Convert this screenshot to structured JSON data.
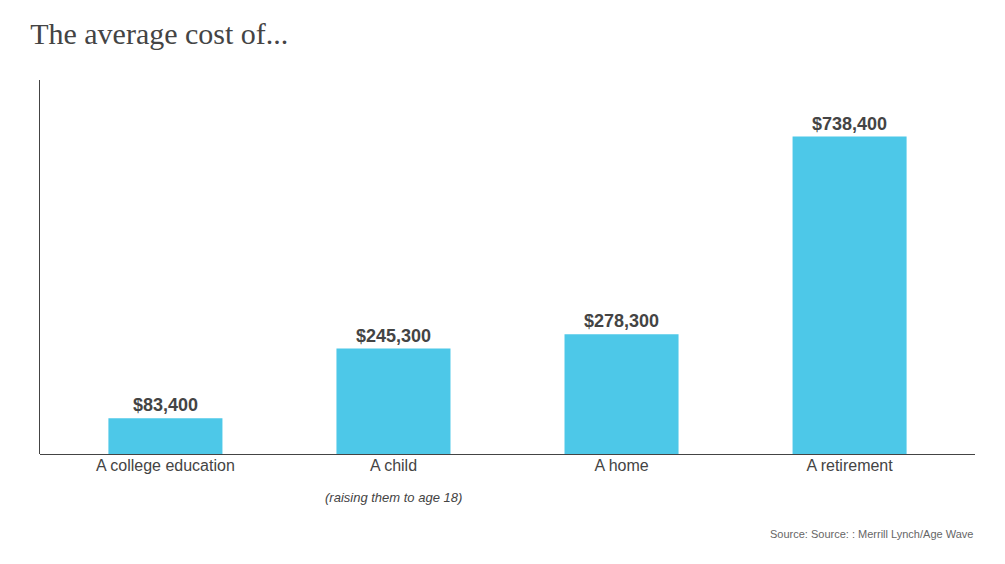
{
  "chart_data": {
    "type": "bar",
    "title": "The average cost of...",
    "categories": [
      "A college education",
      "A child",
      "A home",
      "A retirement"
    ],
    "values": [
      83400,
      245300,
      278300,
      738400
    ],
    "value_labels": [
      "$83,400",
      "$245,300",
      "$278,300",
      "$738,400"
    ],
    "data_labels": true,
    "color": "#4DC8E8",
    "ylim": [
      0,
      870000
    ],
    "tick_labels": "x",
    "grid": false,
    "annotations": [
      {
        "text": "(raising them to age 18)",
        "x": "A child"
      },
      {
        "text": "Source: Source: : Merrill Lynch/Age Wave"
      }
    ]
  }
}
